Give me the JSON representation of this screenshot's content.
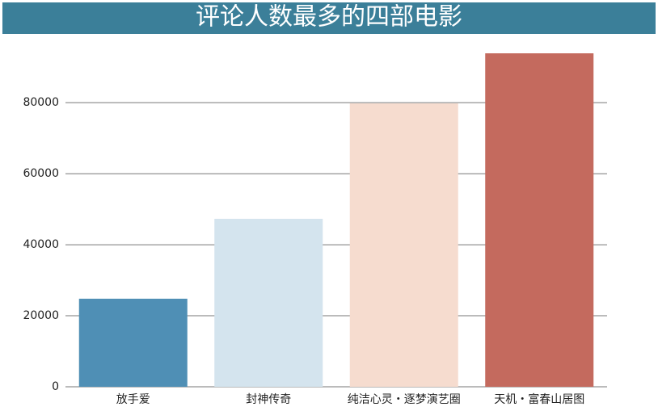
{
  "chart_data": {
    "type": "bar",
    "title": "评论人数最多的四部电影",
    "categories": [
      "放手爱",
      "封神传奇",
      "纯洁心灵・逐梦演艺圈",
      "天机・富春山居图"
    ],
    "values": [
      24800,
      47300,
      79800,
      93900
    ],
    "colors": [
      "#4f8fb5",
      "#d4e4ee",
      "#f6dccf",
      "#c46a5e"
    ],
    "title_background": "#3b7f99",
    "ylim": [
      0,
      98000
    ],
    "yticks": [
      0,
      20000,
      40000,
      60000,
      80000
    ],
    "grid": true
  }
}
